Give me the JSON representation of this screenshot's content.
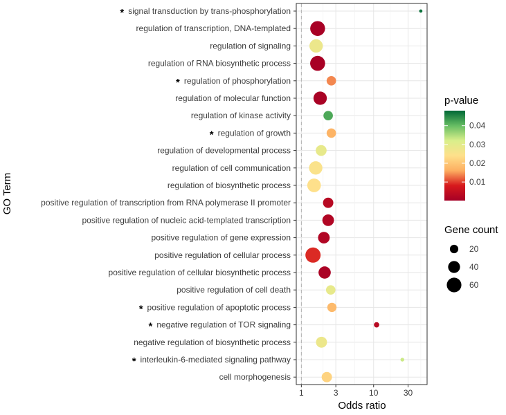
{
  "chart_data": {
    "type": "scatter",
    "title": "",
    "xlabel": "Odds ratio",
    "ylabel": "GO Term",
    "x_scale": "log10",
    "xlim": [
      0.85,
      55
    ],
    "x_ticks": [
      1,
      3,
      10,
      30
    ],
    "x_tick_labels": [
      "1",
      "3",
      "10",
      "30"
    ],
    "reference_line_x": 1,
    "grid": true,
    "legend_position": "right",
    "star_marker": "*",
    "terms": [
      {
        "label": "signal transduction by trans-phosphorylation",
        "starred": true,
        "odds_ratio": 45,
        "p_value": 0.047,
        "gene_count": 3
      },
      {
        "label": "regulation of transcription, DNA-templated",
        "starred": false,
        "odds_ratio": 1.68,
        "p_value": 0.0005,
        "gene_count": 62
      },
      {
        "label": "regulation of signaling",
        "starred": false,
        "odds_ratio": 1.6,
        "p_value": 0.028,
        "gene_count": 50
      },
      {
        "label": "regulation of RNA biosynthetic process",
        "starred": false,
        "odds_ratio": 1.68,
        "p_value": 0.0005,
        "gene_count": 63
      },
      {
        "label": "regulation of phosphorylation",
        "starred": true,
        "odds_ratio": 2.6,
        "p_value": 0.014,
        "gene_count": 25
      },
      {
        "label": "regulation of molecular function",
        "starred": false,
        "odds_ratio": 1.82,
        "p_value": 0.0008,
        "gene_count": 50
      },
      {
        "label": "regulation of kinase activity",
        "starred": false,
        "odds_ratio": 2.35,
        "p_value": 0.042,
        "gene_count": 25
      },
      {
        "label": "regulation of growth",
        "starred": true,
        "odds_ratio": 2.6,
        "p_value": 0.017,
        "gene_count": 25
      },
      {
        "label": "regulation of developmental process",
        "starred": false,
        "odds_ratio": 1.88,
        "p_value": 0.029,
        "gene_count": 33
      },
      {
        "label": "regulation of cell communication",
        "starred": false,
        "odds_ratio": 1.58,
        "p_value": 0.025,
        "gene_count": 50
      },
      {
        "label": "regulation of biosynthetic process",
        "starred": false,
        "odds_ratio": 1.5,
        "p_value": 0.024,
        "gene_count": 52
      },
      {
        "label": "positive regulation of transcription from RNA polymerase II promoter",
        "starred": false,
        "odds_ratio": 2.35,
        "p_value": 0.003,
        "gene_count": 30
      },
      {
        "label": "positive regulation of nucleic acid-templated transcription",
        "starred": false,
        "odds_ratio": 2.35,
        "p_value": 0.002,
        "gene_count": 38
      },
      {
        "label": "positive regulation of gene expression",
        "starred": false,
        "odds_ratio": 2.05,
        "p_value": 0.002,
        "gene_count": 38
      },
      {
        "label": "positive regulation of cellular process",
        "starred": false,
        "odds_ratio": 1.45,
        "p_value": 0.009,
        "gene_count": 65
      },
      {
        "label": "positive regulation of cellular biosynthetic process",
        "starred": false,
        "odds_ratio": 2.1,
        "p_value": 0.001,
        "gene_count": 42
      },
      {
        "label": "positive regulation of cell death",
        "starred": false,
        "odds_ratio": 2.55,
        "p_value": 0.029,
        "gene_count": 25
      },
      {
        "label": "positive regulation of apoptotic process",
        "starred": true,
        "odds_ratio": 2.65,
        "p_value": 0.018,
        "gene_count": 24
      },
      {
        "label": "negative regulation of TOR signaling",
        "starred": true,
        "odds_ratio": 11,
        "p_value": 0.003,
        "gene_count": 8
      },
      {
        "label": "negative regulation of biosynthetic process",
        "starred": false,
        "odds_ratio": 1.9,
        "p_value": 0.028,
        "gene_count": 34
      },
      {
        "label": "interleukin-6-mediated signaling pathway",
        "starred": true,
        "odds_ratio": 25,
        "p_value": 0.033,
        "gene_count": 4
      },
      {
        "label": "cell morphogenesis",
        "starred": false,
        "odds_ratio": 2.25,
        "p_value": 0.022,
        "gene_count": 30
      }
    ],
    "color_legend": {
      "title": "p-value",
      "ticks": [
        0.01,
        0.02,
        0.03,
        0.04
      ],
      "tick_labels": [
        "0.01",
        "0.02",
        "0.03",
        "0.04"
      ],
      "range": [
        0.0001,
        0.048
      ],
      "colors": [
        "#a50026",
        "#d7191c",
        "#fdae61",
        "#fee08b",
        "#d9ef8b",
        "#66bd63",
        "#006837"
      ]
    },
    "size_legend": {
      "title": "Gene count",
      "values": [
        20,
        40,
        60
      ],
      "labels": [
        "20",
        "40",
        "60"
      ]
    }
  }
}
